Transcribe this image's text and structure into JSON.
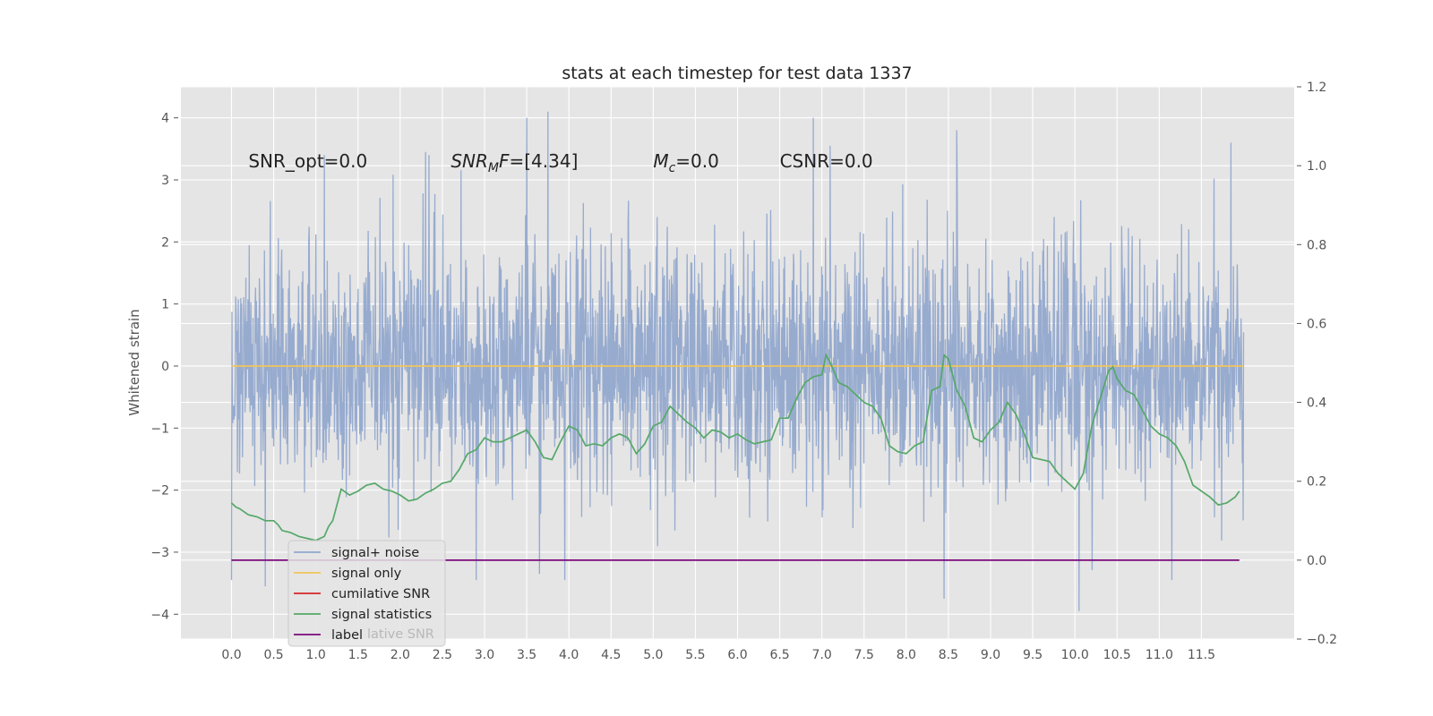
{
  "chart_data": {
    "type": "line",
    "title": "stats at each timestep for test data 1337",
    "ylabel": "Whitened strain",
    "xlabel": "",
    "xlim": [
      -0.6,
      12.6
    ],
    "ylim": [
      -4.4,
      4.5
    ],
    "y2lim": [
      -0.2,
      1.2
    ],
    "grid": true,
    "x_ticks": [
      0.0,
      0.5,
      1.0,
      1.5,
      2.0,
      2.5,
      3.0,
      3.5,
      4.0,
      4.5,
      5.0,
      5.5,
      6.0,
      6.5,
      7.0,
      7.5,
      8.0,
      8.5,
      9.0,
      9.5,
      10.0,
      10.5,
      11.0,
      11.5
    ],
    "x_tick_labels": [
      "0.0",
      "0.5",
      "1.0",
      "1.5",
      "2.0",
      "2.5",
      "3.0",
      "3.5",
      "4.0",
      "4.5",
      "5.0",
      "5.5",
      "6.0",
      "6.5",
      "7.0",
      "7.5",
      "8.0",
      "8.5",
      "9.0",
      "9.5",
      "10.0",
      "10.5",
      "11.0",
      "11.5"
    ],
    "y_ticks": [
      -4,
      -3,
      -2,
      -1,
      0,
      1,
      2,
      3,
      4
    ],
    "y_tick_labels": [
      "−4",
      "−3",
      "−2",
      "−1",
      "0",
      "1",
      "2",
      "3",
      "4"
    ],
    "y2_ticks": [
      -0.2,
      0.0,
      0.2,
      0.4,
      0.6,
      0.8,
      1.0,
      1.2
    ],
    "y2_tick_labels": [
      "−0.2",
      "0.0",
      "0.2",
      "0.4",
      "0.6",
      "0.8",
      "1.0",
      "1.2"
    ],
    "annotations": [
      {
        "text": "SNR_opt=0.0",
        "x": 0.2,
        "y": 3.3
      },
      {
        "text": "SNR_MF=[4.34]",
        "x": 2.6,
        "y": 3.3,
        "main": "SNR",
        "sub": "M",
        "tail": "F=[4.34]"
      },
      {
        "text": "M_c=0.0",
        "x": 5.0,
        "y": 3.3,
        "main": "M",
        "sub": "c",
        "tail": "=0.0"
      },
      {
        "text": "CSNR=0.0",
        "x": 6.5,
        "y": 3.3
      }
    ],
    "legend": {
      "placement": "lower-left",
      "entries": [
        {
          "name": "signal+ noise",
          "color": "#92a8cd"
        },
        {
          "name": "signal only",
          "color": "#f2c65a"
        },
        {
          "name": "cumilative SNR",
          "color": "#d62728"
        },
        {
          "name": "signal statistics",
          "color": "#55a868"
        },
        {
          "name": "label",
          "color": "#7b0a7b"
        }
      ],
      "ghost_text": "lative SNR"
    },
    "series": [
      {
        "name": "signal+ noise",
        "axis": "left",
        "color": "#92a8cd",
        "x_start": 0.0,
        "x_end": 12.0,
        "n_samples": 2400,
        "seed": 1337,
        "sigma": 1.0,
        "notable_spikes": [
          {
            "x": 3.75,
            "y": 4.1
          },
          {
            "x": 3.5,
            "y": 4.0
          },
          {
            "x": 6.9,
            "y": 4.0
          },
          {
            "x": 8.6,
            "y": 3.8
          },
          {
            "x": 11.85,
            "y": 3.6
          },
          {
            "x": 7.1,
            "y": 3.55
          },
          {
            "x": 2.3,
            "y": 3.45
          },
          {
            "x": 10.05,
            "y": -3.95
          },
          {
            "x": 8.45,
            "y": -3.75
          },
          {
            "x": 0.4,
            "y": -3.55
          },
          {
            "x": 3.95,
            "y": -3.45
          },
          {
            "x": 2.9,
            "y": -3.45
          },
          {
            "x": 11.15,
            "y": -3.45
          },
          {
            "x": 0.0,
            "y": -3.45
          },
          {
            "x": 3.65,
            "y": -3.35
          },
          {
            "x": 6.0,
            "y": 1.4
          },
          {
            "x": 6.0,
            "y": -1.8
          }
        ]
      },
      {
        "name": "signal only",
        "axis": "left",
        "color": "#f2c65a",
        "x": [
          0.0,
          12.0
        ],
        "y": [
          0.0,
          0.0
        ]
      },
      {
        "name": "signal statistics",
        "axis": "right",
        "color": "#55a868",
        "x": [
          0.0,
          0.05,
          0.1,
          0.2,
          0.3,
          0.4,
          0.5,
          0.55,
          0.6,
          0.7,
          0.8,
          0.9,
          1.0,
          1.1,
          1.15,
          1.2,
          1.3,
          1.4,
          1.5,
          1.6,
          1.7,
          1.8,
          1.9,
          2.0,
          2.1,
          2.2,
          2.3,
          2.4,
          2.5,
          2.6,
          2.7,
          2.8,
          2.9,
          3.0,
          3.1,
          3.2,
          3.3,
          3.4,
          3.5,
          3.6,
          3.7,
          3.8,
          3.9,
          4.0,
          4.1,
          4.2,
          4.3,
          4.4,
          4.5,
          4.6,
          4.7,
          4.8,
          4.9,
          5.0,
          5.1,
          5.2,
          5.3,
          5.4,
          5.5,
          5.6,
          5.7,
          5.8,
          5.9,
          6.0,
          6.1,
          6.2,
          6.3,
          6.4,
          6.5,
          6.6,
          6.7,
          6.8,
          6.9,
          7.0,
          7.05,
          7.1,
          7.2,
          7.3,
          7.4,
          7.5,
          7.6,
          7.7,
          7.8,
          7.9,
          8.0,
          8.1,
          8.2,
          8.3,
          8.4,
          8.45,
          8.5,
          8.6,
          8.7,
          8.8,
          8.9,
          9.0,
          9.1,
          9.2,
          9.3,
          9.4,
          9.5,
          9.6,
          9.7,
          9.8,
          9.9,
          10.0,
          10.1,
          10.2,
          10.3,
          10.4,
          10.45,
          10.5,
          10.6,
          10.7,
          10.8,
          10.9,
          11.0,
          11.1,
          11.2,
          11.3,
          11.4,
          11.5,
          11.6,
          11.7,
          11.8,
          11.9,
          11.95
        ],
        "y": [
          0.145,
          0.135,
          0.13,
          0.115,
          0.11,
          0.1,
          0.1,
          0.09,
          0.075,
          0.07,
          0.06,
          0.055,
          0.05,
          0.06,
          0.085,
          0.1,
          0.18,
          0.165,
          0.175,
          0.19,
          0.195,
          0.18,
          0.175,
          0.165,
          0.15,
          0.155,
          0.17,
          0.18,
          0.195,
          0.2,
          0.23,
          0.27,
          0.28,
          0.31,
          0.3,
          0.3,
          0.31,
          0.32,
          0.33,
          0.3,
          0.26,
          0.255,
          0.3,
          0.34,
          0.33,
          0.29,
          0.295,
          0.29,
          0.31,
          0.32,
          0.31,
          0.27,
          0.295,
          0.34,
          0.35,
          0.39,
          0.37,
          0.35,
          0.335,
          0.31,
          0.33,
          0.325,
          0.31,
          0.32,
          0.305,
          0.295,
          0.3,
          0.305,
          0.36,
          0.36,
          0.41,
          0.45,
          0.465,
          0.47,
          0.52,
          0.5,
          0.45,
          0.44,
          0.42,
          0.4,
          0.39,
          0.36,
          0.29,
          0.275,
          0.27,
          0.29,
          0.3,
          0.43,
          0.44,
          0.52,
          0.51,
          0.43,
          0.39,
          0.31,
          0.3,
          0.33,
          0.35,
          0.4,
          0.37,
          0.32,
          0.26,
          0.255,
          0.25,
          0.22,
          0.2,
          0.18,
          0.22,
          0.34,
          0.41,
          0.48,
          0.49,
          0.46,
          0.43,
          0.42,
          0.38,
          0.34,
          0.32,
          0.31,
          0.29,
          0.25,
          0.19,
          0.175,
          0.16,
          0.14,
          0.145,
          0.16,
          0.175
        ]
      },
      {
        "name": "label",
        "axis": "right",
        "color": "#7b0a7b",
        "x": [
          0.0,
          11.95
        ],
        "y": [
          0.0,
          0.0
        ]
      }
    ]
  }
}
